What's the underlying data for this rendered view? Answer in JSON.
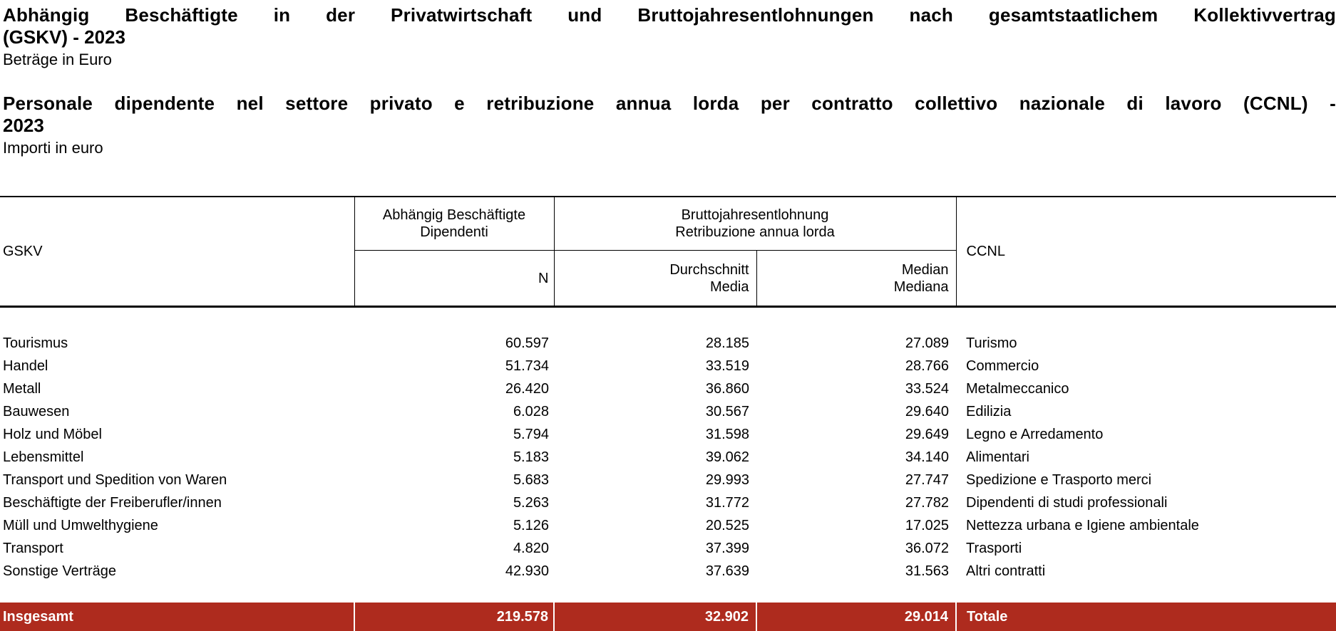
{
  "header": {
    "title_de": {
      "line1": "Abhängig Beschäftigte in der Privatwirtschaft und Bruttojahresentlohnungen nach gesamtstaatlichem Kollektivvertrag",
      "line2": "(GSKV) - 2023"
    },
    "subtitle_de": "Beträge in Euro",
    "title_it": {
      "line1": "Personale dipendente nel settore privato e retribuzione annua lorda per contratto collettivo nazionale di lavoro (CCNL) -",
      "line2": "2023"
    },
    "subtitle_it": "Importi in euro"
  },
  "table": {
    "columns": {
      "gskv": "GSKV",
      "employees_de": "Abhängig Beschäftigte",
      "employees_it": "Dipendenti",
      "n": "N",
      "gross_de": "Bruttojahresentlohnung",
      "gross_it": "Retribuzione annua lorda",
      "avg_de": "Durchschnitt",
      "avg_it": "Media",
      "median_de": "Median",
      "median_it": "Mediana",
      "ccnl": "CCNL"
    },
    "rows": [
      {
        "gskv": "Tourismus",
        "n": "60.597",
        "avg": "28.185",
        "median": "27.089",
        "ccnl": "Turismo"
      },
      {
        "gskv": "Handel",
        "n": "51.734",
        "avg": "33.519",
        "median": "28.766",
        "ccnl": "Commercio"
      },
      {
        "gskv": "Metall",
        "n": "26.420",
        "avg": "36.860",
        "median": "33.524",
        "ccnl": "Metalmeccanico"
      },
      {
        "gskv": "Bauwesen",
        "n": "6.028",
        "avg": "30.567",
        "median": "29.640",
        "ccnl": "Edilizia"
      },
      {
        "gskv": "Holz und Möbel",
        "n": "5.794",
        "avg": "31.598",
        "median": "29.649",
        "ccnl": "Legno e Arredamento"
      },
      {
        "gskv": "Lebensmittel",
        "n": "5.183",
        "avg": "39.062",
        "median": "34.140",
        "ccnl": "Alimentari"
      },
      {
        "gskv": "Transport und Spedition von Waren",
        "n": "5.683",
        "avg": "29.993",
        "median": "27.747",
        "ccnl": "Spedizione e Trasporto merci"
      },
      {
        "gskv": "Beschäftigte der Freiberufler/innen",
        "n": "5.263",
        "avg": "31.772",
        "median": "27.782",
        "ccnl": "Dipendenti di studi professionali"
      },
      {
        "gskv": "Müll und Umwelthygiene",
        "n": "5.126",
        "avg": "20.525",
        "median": "17.025",
        "ccnl": "Nettezza urbana e Igiene ambientale"
      },
      {
        "gskv": "Transport",
        "n": "4.820",
        "avg": "37.399",
        "median": "36.072",
        "ccnl": "Trasporti"
      },
      {
        "gskv": "Sonstige Verträge",
        "n": "42.930",
        "avg": "37.639",
        "median": "31.563",
        "ccnl": "Altri contratti"
      }
    ],
    "total": {
      "gskv": "Insgesamt",
      "n": "219.578",
      "avg": "32.902",
      "median": "29.014",
      "ccnl": "Totale"
    }
  },
  "colors": {
    "total_row_bg": "#AE2B1E",
    "total_row_text": "#FFFFFF"
  }
}
